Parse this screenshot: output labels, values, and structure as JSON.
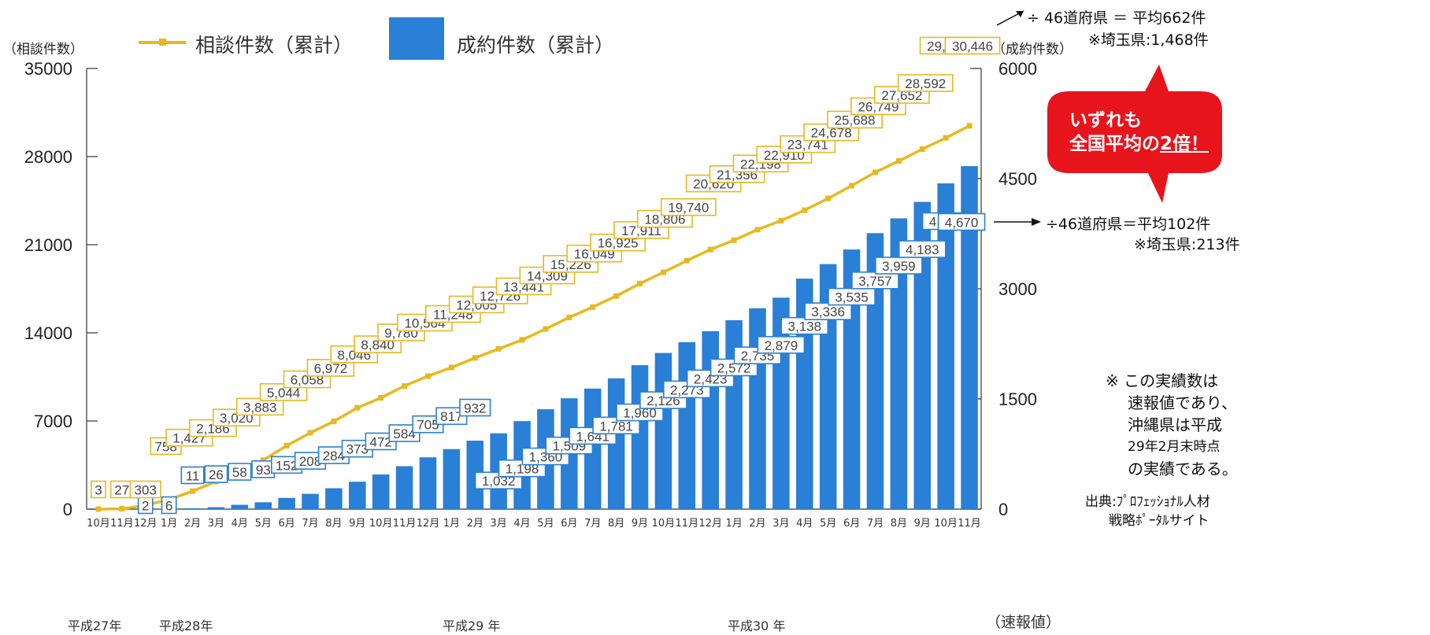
{
  "left_axis_title": "（相談件数）",
  "right_axis_title": "（成約件数）",
  "legend": {
    "line_label": "相談件数（累計）",
    "bar_label": "成約件数（累計）"
  },
  "annotations": {
    "top_right_line1": "÷ 46道府県 ＝ 平均662件",
    "top_right_line2": "※埼玉県:1,468件",
    "mid_right_line1": "÷46道府県＝平均102件",
    "mid_right_line2": "※埼玉県:213件",
    "callout_line1": "いずれも",
    "callout_line2a": "全国平均の",
    "callout_line2b": "2倍！",
    "note_lines": [
      "※ この実績数は",
      "速報値であり、",
      "沖縄県は平成",
      "29年2月末時点",
      "の実績である。"
    ],
    "source_line1": "出典:ﾌﾟﾛﾌｪｯｼｮﾅﾙ人材",
    "source_line2": "戦略ﾎﾟｰﾀﾙサイト",
    "preliminary_label": "（速報値）",
    "era_labels": [
      "平成27年",
      "平成28年",
      "平成29 年",
      "平成30 年"
    ]
  },
  "colors": {
    "line": "#E8B81E",
    "bar": "#2A7FD6",
    "callout": "#E8141C"
  },
  "chart_data": {
    "type": "bar",
    "categories": [
      "10月",
      "11月",
      "12月",
      "1月",
      "2月",
      "3月",
      "4月",
      "5月",
      "6月",
      "7月",
      "8月",
      "9月",
      "10月",
      "11月",
      "12月",
      "1月",
      "2月",
      "3月",
      "4月",
      "5月",
      "6月",
      "7月",
      "8月",
      "9月",
      "10月",
      "11月",
      "12月",
      "1月",
      "2月",
      "3月",
      "4月",
      "5月",
      "6月",
      "7月",
      "8月",
      "9月",
      "10月",
      "11月"
    ],
    "series": [
      {
        "name": "相談件数（累計）",
        "type": "line",
        "axis": "left",
        "values": [
          3,
          27,
          303,
          758,
          1427,
          2186,
          3020,
          3883,
          5044,
          6058,
          6972,
          8046,
          8840,
          9780,
          10564,
          11248,
          12005,
          12726,
          13441,
          14309,
          15226,
          16049,
          16925,
          17911,
          18806,
          19740,
          20620,
          21356,
          22198,
          22910,
          23741,
          24678,
          25688,
          26749,
          27652,
          28592,
          29488,
          30446
        ]
      },
      {
        "name": "成約件数（累計）",
        "type": "bar",
        "axis": "right",
        "values": [
          0,
          0,
          2,
          6,
          11,
          26,
          58,
          93,
          152,
          208,
          284,
          373,
          472,
          584,
          705,
          817,
          932,
          1032,
          1198,
          1360,
          1509,
          1641,
          1781,
          1960,
          2126,
          2273,
          2423,
          2572,
          2735,
          2879,
          3138,
          3336,
          3535,
          3757,
          3959,
          4183,
          4435,
          4670
        ]
      }
    ],
    "y_left_ticks": [
      "35000",
      "28000",
      "21000",
      "14000",
      "7000",
      "0"
    ],
    "y_right_ticks": [
      "6000",
      "4500",
      "3000",
      "1500",
      "0"
    ],
    "y_left_range": [
      0,
      35000
    ],
    "y_right_range": [
      0,
      6000
    ],
    "line_label_texts": [
      "3",
      "27",
      "303",
      "758",
      "1,427",
      "2,186",
      "3,020",
      "3,883",
      "5,044",
      "6,058",
      "6,972",
      "8,046",
      "8,840",
      "9,780",
      "10,564",
      "11,248",
      "12,005",
      "12,726",
      "13,441",
      "14,309",
      "15,226",
      "16,049",
      "16,925",
      "17,911",
      "18,806",
      "19,740",
      "20,620",
      "21,356",
      "22,198",
      "22,910",
      "23,741",
      "24,678",
      "25,688",
      "26,749",
      "27,652",
      "28,592",
      "29,488",
      "30,446"
    ],
    "bar_label_texts": [
      "",
      "",
      "2",
      "6",
      "11",
      "26",
      "58",
      "93",
      "152",
      "208",
      "284",
      "373",
      "472",
      "584",
      "705",
      "817",
      "932",
      "1,032",
      "1,198",
      "1,360",
      "1,509",
      "1,641",
      "1,781",
      "1,960",
      "2,126",
      "2,273",
      "2,423",
      "2,572",
      "2,735",
      "2,879",
      "3,138",
      "3,336",
      "3,535",
      "3,757",
      "3,959",
      "4,183",
      "4,435",
      "4,670"
    ],
    "legend_position": "top-left",
    "grid": false
  }
}
